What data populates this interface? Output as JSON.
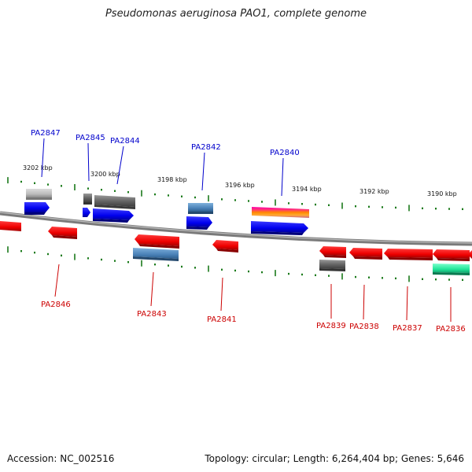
{
  "title": "Pseudomonas aeruginosa PAO1, complete genome",
  "footer": {
    "accession": "Accession: NC_002516",
    "stats": "Topology: circular; Length: 6,264,404 bp; Genes: 5,646"
  },
  "colors": {
    "forward_label": "#0000cc",
    "reverse_label": "#cc0000",
    "backbone": "#7a7a7a",
    "tick": "#1a7a1a"
  },
  "ruler_labels": [
    "3202 kbp",
    "3200 kbp",
    "3198 kbp",
    "3196 kbp",
    "3194 kbp",
    "3192 kbp",
    "3190 kbp"
  ],
  "forward_labels": [
    "PA2847",
    "PA2845",
    "PA2844",
    "PA2842",
    "PA2840"
  ],
  "reverse_labels": [
    "PA2846",
    "PA2843",
    "PA2841",
    "PA2839",
    "PA2838",
    "PA2837",
    "PA2836"
  ]
}
